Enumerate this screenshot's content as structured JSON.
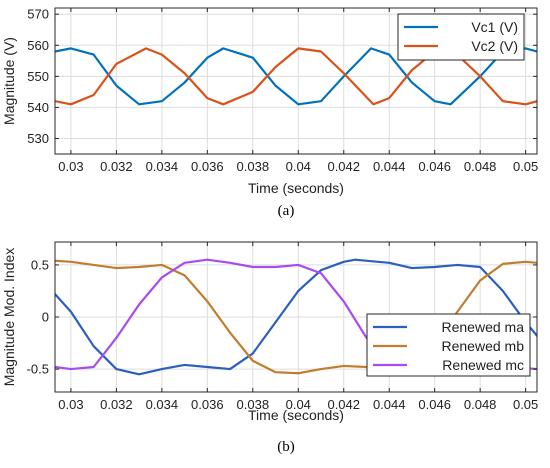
{
  "chart_data": [
    {
      "type": "line",
      "caption": "(a)",
      "xlabel": "Time (seconds)",
      "ylabel": "Magnitude (V)",
      "xlim": [
        0.0293,
        0.0505
      ],
      "ylim": [
        525,
        572
      ],
      "x_ticks": [
        0.03,
        0.032,
        0.034,
        0.036,
        0.038,
        0.04,
        0.042,
        0.044,
        0.046,
        0.048,
        0.05
      ],
      "x_tick_labels": [
        "0.03",
        "0.032",
        "0.034",
        "0.036",
        "0.038",
        "0.04",
        "0.042",
        "0.044",
        "0.046",
        "0.048",
        "0.05"
      ],
      "y_ticks": [
        530,
        540,
        550,
        560,
        570
      ],
      "y_tick_labels": [
        "530",
        "540",
        "550",
        "560",
        "570"
      ],
      "grid": true,
      "legend_position": "top-right",
      "series": [
        {
          "name": "Vc1 (V)",
          "color": "#0072BD",
          "x": [
            0.0293,
            0.03,
            0.031,
            0.032,
            0.033,
            0.034,
            0.035,
            0.036,
            0.0367,
            0.038,
            0.039,
            0.04,
            0.041,
            0.042,
            0.0432,
            0.044,
            0.045,
            0.046,
            0.0467,
            0.048,
            0.049,
            0.05,
            0.0505
          ],
          "values": [
            558,
            559,
            557,
            547,
            541,
            542,
            548,
            556,
            559,
            556,
            547,
            541,
            542,
            550,
            559,
            557,
            548,
            542,
            541,
            550,
            558,
            559,
            558
          ]
        },
        {
          "name": "Vc2 (V)",
          "color": "#D95319",
          "x": [
            0.0293,
            0.03,
            0.031,
            0.032,
            0.0333,
            0.034,
            0.035,
            0.036,
            0.0367,
            0.038,
            0.039,
            0.04,
            0.041,
            0.042,
            0.0433,
            0.044,
            0.045,
            0.046,
            0.0467,
            0.048,
            0.049,
            0.05,
            0.0505
          ],
          "values": [
            542,
            541,
            544,
            554,
            559,
            557,
            551,
            543,
            541,
            545,
            553,
            559,
            558,
            551,
            541,
            543,
            552,
            558,
            559,
            550,
            542,
            541,
            542
          ]
        }
      ]
    },
    {
      "type": "line",
      "caption": "(b)",
      "xlabel": "Time (seconds)",
      "ylabel": "Magnitude Mod. Index",
      "xlim": [
        0.0293,
        0.0505
      ],
      "ylim": [
        -0.72,
        0.72
      ],
      "x_ticks": [
        0.03,
        0.032,
        0.034,
        0.036,
        0.038,
        0.04,
        0.042,
        0.044,
        0.046,
        0.048,
        0.05
      ],
      "x_tick_labels": [
        "0.03",
        "0.032",
        "0.034",
        "0.036",
        "0.038",
        "0.04",
        "0.042",
        "0.044",
        "0.046",
        "0.048",
        "0.05"
      ],
      "y_ticks": [
        -0.5,
        0,
        0.5
      ],
      "y_tick_labels": [
        "-0.5",
        "0",
        "0.5"
      ],
      "grid": true,
      "legend_position": "bottom-right",
      "series": [
        {
          "name": "Renewed ma",
          "color": "#2A5FC0",
          "x": [
            0.0293,
            0.03,
            0.031,
            0.032,
            0.033,
            0.034,
            0.035,
            0.036,
            0.037,
            0.038,
            0.039,
            0.04,
            0.041,
            0.042,
            0.0425,
            0.044,
            0.045,
            0.046,
            0.047,
            0.048,
            0.049,
            0.05,
            0.0505
          ],
          "values": [
            0.22,
            0.05,
            -0.28,
            -0.5,
            -0.55,
            -0.5,
            -0.46,
            -0.48,
            -0.5,
            -0.35,
            -0.05,
            0.25,
            0.45,
            0.53,
            0.55,
            0.52,
            0.47,
            0.48,
            0.5,
            0.48,
            0.25,
            -0.05,
            -0.18
          ]
        },
        {
          "name": "Renewed mb",
          "color": "#C27C2E",
          "x": [
            0.0293,
            0.03,
            0.031,
            0.032,
            0.033,
            0.034,
            0.035,
            0.036,
            0.037,
            0.038,
            0.039,
            0.04,
            0.041,
            0.042,
            0.043,
            0.044,
            0.045,
            0.046,
            0.047,
            0.048,
            0.049,
            0.05,
            0.0505
          ],
          "values": [
            0.54,
            0.53,
            0.5,
            0.47,
            0.48,
            0.5,
            0.4,
            0.15,
            -0.15,
            -0.42,
            -0.53,
            -0.54,
            -0.5,
            -0.47,
            -0.48,
            -0.5,
            -0.45,
            -0.25,
            0.05,
            0.35,
            0.51,
            0.53,
            0.52
          ]
        },
        {
          "name": "Renewed mc",
          "color": "#A64CF0",
          "x": [
            0.0293,
            0.03,
            0.031,
            0.032,
            0.033,
            0.034,
            0.035,
            0.036,
            0.037,
            0.038,
            0.039,
            0.04,
            0.041,
            0.042,
            0.043,
            0.044,
            0.045,
            0.046,
            0.047,
            0.048,
            0.049,
            0.05,
            0.0505
          ],
          "values": [
            -0.48,
            -0.5,
            -0.48,
            -0.2,
            0.12,
            0.38,
            0.52,
            0.55,
            0.52,
            0.48,
            0.48,
            0.5,
            0.42,
            0.15,
            -0.2,
            -0.45,
            -0.53,
            -0.5,
            -0.48,
            -0.5,
            -0.5,
            -0.49,
            -0.5
          ]
        }
      ]
    }
  ]
}
